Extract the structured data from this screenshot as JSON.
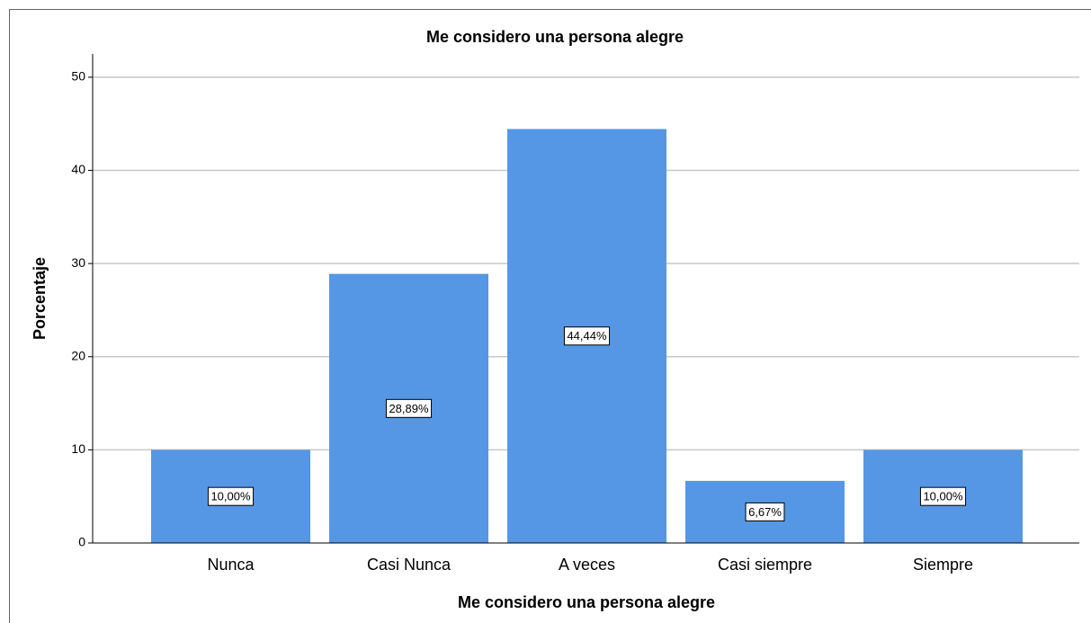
{
  "chart_data": {
    "type": "bar",
    "title": "Me considero una persona alegre",
    "x_label": "Me considero una persona alegre",
    "y_label": "Porcentaje",
    "categories": [
      "Nunca",
      "Casi Nunca",
      "A veces",
      "Casi siempre",
      "Siempre"
    ],
    "values": [
      10,
      28.89,
      44.44,
      6.67,
      10
    ],
    "value_labels": [
      "10,00%",
      "28,89%",
      "44,44%",
      "6,67%",
      "10,00%"
    ],
    "color": "#5597e4",
    "ylim": [
      0,
      52.5
    ],
    "yticks": [
      0,
      10,
      20,
      30,
      40,
      50
    ],
    "grid": true
  }
}
